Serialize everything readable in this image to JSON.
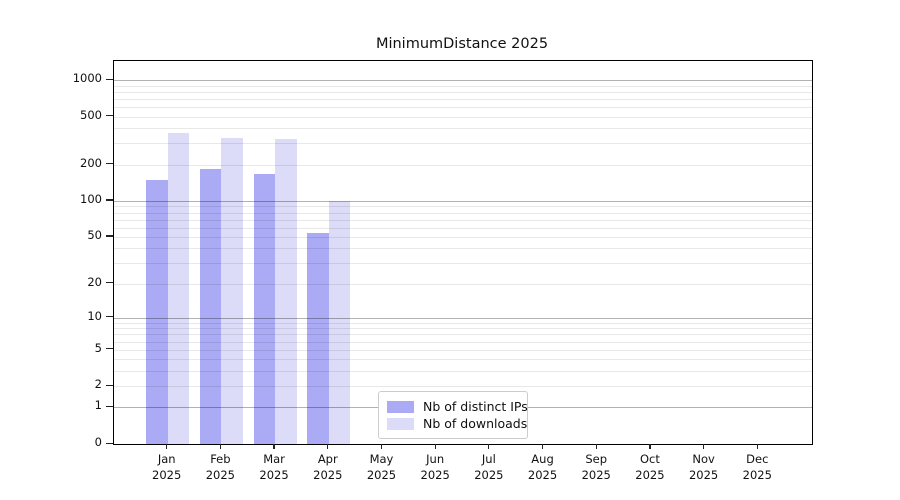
{
  "chart_data": {
    "type": "bar",
    "title": "MinimumDistance 2025",
    "categories": [
      "Jan",
      "Feb",
      "Mar",
      "Apr",
      "May",
      "Jun",
      "Jul",
      "Aug",
      "Sep",
      "Oct",
      "Nov",
      "Dec"
    ],
    "year_label": "2025",
    "series": [
      {
        "name": "Nb of distinct IPs",
        "color": "#aaaaf5",
        "values": [
          150,
          183,
          168,
          54,
          null,
          null,
          null,
          null,
          null,
          null,
          null,
          null
        ]
      },
      {
        "name": "Nb of downloads",
        "color": "#dcdcf8",
        "values": [
          365,
          330,
          325,
          100,
          null,
          null,
          null,
          null,
          null,
          null,
          null,
          null
        ]
      }
    ],
    "yticks": [
      0,
      1,
      2,
      5,
      10,
      20,
      50,
      100,
      200,
      500,
      1000
    ],
    "major_grid_values": [
      1,
      10,
      100,
      1000
    ],
    "minor_grid_values": [
      2,
      3,
      4,
      5,
      6,
      7,
      8,
      9,
      20,
      30,
      40,
      50,
      60,
      70,
      80,
      90,
      200,
      300,
      400,
      500,
      600,
      700,
      800,
      900
    ],
    "scale": "log1p",
    "ylim": [
      0,
      1440
    ],
    "grid": true,
    "legend_position": "bottom-center",
    "colors": {
      "major_grid": "#b2b2b2",
      "minor_grid": "#e8e8e8",
      "spine": "#000000",
      "text": "#111111"
    }
  }
}
